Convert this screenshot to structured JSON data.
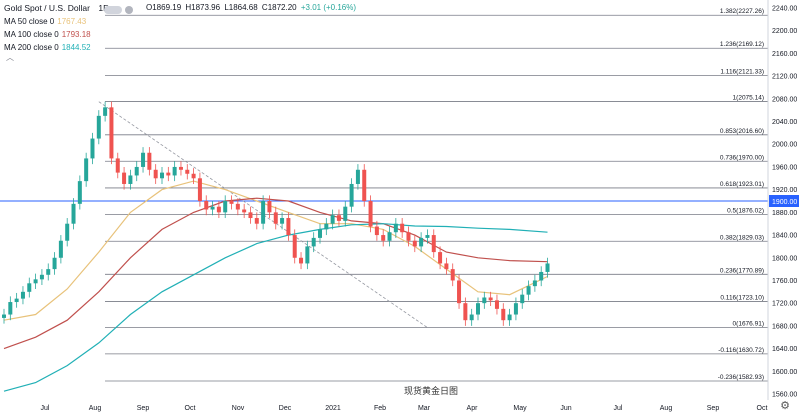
{
  "legend": {
    "title": "Gold Spot / U.S. Dollar",
    "interval": "1D",
    "ma": [
      {
        "label": "MA 50 close 0",
        "value": "1767.43",
        "color": "#e8c27a"
      },
      {
        "label": "MA 100 close 0",
        "value": "1793.18",
        "color": "#c0504d"
      },
      {
        "label": "MA 200 close 0",
        "value": "1844.52",
        "color": "#21b0b6"
      }
    ]
  },
  "ohlc": {
    "open": "O1869.19",
    "high": "H1873.96",
    "low": "L1864.68",
    "close": "C1872.20",
    "change": "+3.01 (+0.16%)",
    "change_color": "#26a69a"
  },
  "watermark": "现货黄金日图",
  "chart_data": {
    "type": "line",
    "title": "Gold Spot / U.S. Dollar",
    "ylim": [
      1550,
      2250
    ],
    "y_ticks": [
      "2240.00",
      "2200.00",
      "2160.00",
      "2120.00",
      "2080.00",
      "2040.00",
      "2000.00",
      "1960.00",
      "1920.00",
      "1880.00",
      "1840.00",
      "1800.00",
      "1760.00",
      "1720.00",
      "1680.00",
      "1640.00",
      "1600.00",
      "1560.00"
    ],
    "x_ticks": [
      "Jul",
      "Aug",
      "Sep",
      "Oct",
      "Nov",
      "Dec",
      "2021",
      "Feb",
      "Mar",
      "Apr",
      "May",
      "Jun",
      "Jul",
      "Aug",
      "Sep",
      "Oct"
    ],
    "current_price": {
      "value": 1900,
      "label": "1900.00"
    },
    "fib_levels": [
      {
        "value": 2227.26,
        "label": "1.382(2227.26)"
      },
      {
        "value": 2169.12,
        "label": "1.236(2169.12)"
      },
      {
        "value": 2121.33,
        "label": "1.116(2121.33)"
      },
      {
        "value": 2075.14,
        "label": "1(2075.14)"
      },
      {
        "value": 2016.6,
        "label": "0.853(2016.60)"
      },
      {
        "value": 1970.0,
        "label": "0.736(1970.00)"
      },
      {
        "value": 1923.01,
        "label": "0.618(1923.01)"
      },
      {
        "value": 1876.02,
        "label": "0.5(1876.02)"
      },
      {
        "value": 1829.03,
        "label": "0.382(1829.03)"
      },
      {
        "value": 1770.89,
        "label": "0.236(1770.89)"
      },
      {
        "value": 1723.1,
        "label": "0.116(1723.10)"
      },
      {
        "value": 1676.91,
        "label": "0(1676.91)"
      },
      {
        "value": 1630.72,
        "label": "-0.116(1630.72)"
      },
      {
        "value": 1582.93,
        "label": "-0.236(1582.93)"
      }
    ],
    "price_series": {
      "name": "Gold Spot",
      "color": "#26a69a",
      "down_color": "#ef5350",
      "x": [
        0,
        4,
        8,
        12,
        16,
        20,
        24,
        28,
        32,
        36,
        40,
        44,
        48,
        52,
        56,
        60,
        64,
        68,
        72,
        76,
        80,
        84,
        88,
        92,
        96,
        100,
        104,
        108,
        112,
        116,
        120,
        124,
        128,
        132,
        136,
        140,
        144,
        148,
        152,
        156,
        160,
        164,
        168,
        172,
        176,
        180,
        184,
        188,
        192,
        196,
        200,
        204,
        208,
        212,
        216,
        220,
        224,
        228,
        232,
        236,
        240,
        244,
        248,
        252,
        256,
        260,
        264,
        268,
        272,
        276,
        280,
        284,
        288,
        292,
        296,
        300,
        304,
        308,
        312,
        316,
        320,
        324,
        328,
        332,
        336,
        340,
        344
      ],
      "values": [
        1700,
        1722,
        1728,
        1740,
        1755,
        1762,
        1770,
        1780,
        1800,
        1830,
        1860,
        1895,
        1935,
        1975,
        2010,
        2050,
        2065,
        1975,
        1950,
        1930,
        1945,
        1960,
        1985,
        1955,
        1940,
        1950,
        1945,
        1960,
        1955,
        1948,
        1940,
        1900,
        1885,
        1890,
        1880,
        1900,
        1895,
        1885,
        1880,
        1870,
        1860,
        1900,
        1880,
        1860,
        1870,
        1840,
        1800,
        1790,
        1820,
        1835,
        1850,
        1860,
        1875,
        1865,
        1890,
        1930,
        1955,
        1900,
        1855,
        1840,
        1830,
        1845,
        1860,
        1845,
        1830,
        1820,
        1835,
        1840,
        1810,
        1790,
        1780,
        1760,
        1720,
        1690,
        1700,
        1720,
        1730,
        1725,
        1710,
        1690,
        1700,
        1720,
        1735,
        1750,
        1760,
        1775,
        1790
      ]
    },
    "ma_series": [
      {
        "name": "MA 50",
        "color": "#e8c27a",
        "x": [
          0,
          20,
          40,
          60,
          80,
          100,
          120,
          140,
          160,
          180,
          200,
          220,
          240,
          260,
          280,
          300,
          320,
          344
        ],
        "values": [
          1690,
          1700,
          1745,
          1810,
          1880,
          1920,
          1935,
          1920,
          1900,
          1880,
          1860,
          1860,
          1850,
          1820,
          1780,
          1740,
          1735,
          1767
        ]
      },
      {
        "name": "MA 100",
        "color": "#c0504d",
        "x": [
          0,
          20,
          40,
          60,
          80,
          100,
          120,
          140,
          160,
          180,
          200,
          220,
          240,
          260,
          280,
          300,
          320,
          344
        ],
        "values": [
          1640,
          1660,
          1690,
          1740,
          1800,
          1850,
          1880,
          1900,
          1905,
          1900,
          1880,
          1865,
          1860,
          1840,
          1810,
          1800,
          1795,
          1793
        ]
      },
      {
        "name": "MA 200",
        "color": "#21b0b6",
        "x": [
          0,
          20,
          40,
          60,
          80,
          100,
          120,
          140,
          160,
          180,
          200,
          220,
          240,
          260,
          280,
          300,
          320,
          344
        ],
        "values": [
          1565,
          1580,
          1610,
          1650,
          1700,
          1740,
          1770,
          1800,
          1825,
          1840,
          1850,
          1858,
          1860,
          1856,
          1855,
          1852,
          1850,
          1845
        ]
      }
    ],
    "trendline": {
      "color": "#9598a1",
      "from": {
        "x": 60,
        "y": 2075
      },
      "to": {
        "x": 268,
        "y": 1677
      }
    }
  }
}
